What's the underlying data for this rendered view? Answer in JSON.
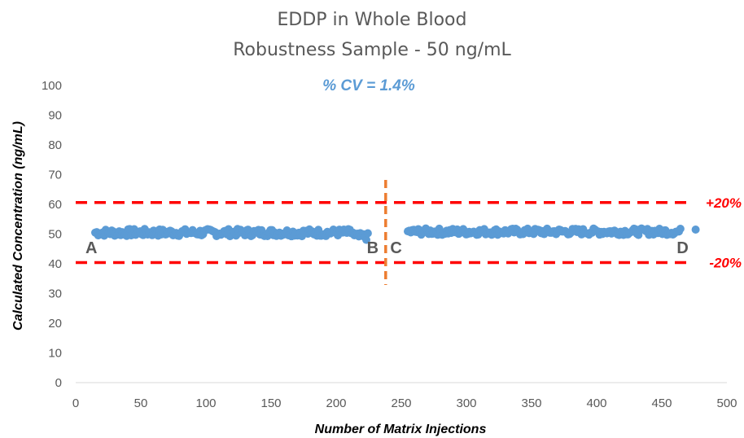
{
  "chart_data": {
    "type": "scatter",
    "title": [
      "EDDP in Whole Blood",
      "Robustness Sample - 50 ng/mL"
    ],
    "xlabel": "Number of Matrix Injections",
    "ylabel": "Calculated Concentration (ng/mL)",
    "xlim": [
      0,
      500
    ],
    "ylim": [
      0,
      100
    ],
    "x_ticks": [
      0,
      50,
      100,
      150,
      200,
      250,
      300,
      350,
      400,
      450,
      500
    ],
    "y_ticks": [
      0,
      10,
      20,
      30,
      40,
      50,
      60,
      70,
      80,
      90,
      100
    ],
    "grid": false,
    "marker_color": "#5B9BD5",
    "series": [
      {
        "segment": "A-B",
        "x_range": [
          15,
          225
        ],
        "values_approx": 50.5,
        "range": [
          48,
          52.5
        ]
      },
      {
        "segment": "C-D",
        "x_range": [
          255,
          465
        ],
        "values_approx": 50.8,
        "range": [
          48.5,
          52.5
        ]
      },
      {
        "segment": "extra",
        "x": [
          476
        ],
        "values": [
          51.5
        ]
      }
    ],
    "annotations": {
      "cv": "% CV = 1.4%",
      "upper_limit": {
        "value": 60.6,
        "label": "+20%",
        "color": "#FF0000"
      },
      "lower_limit": {
        "value": 40.4,
        "label": "-20%",
        "color": "#FF0000"
      },
      "divider": {
        "x": 238,
        "color": "#ED7D31"
      },
      "points": [
        {
          "label": "A",
          "x": 12,
          "y": 45.5
        },
        {
          "label": "B",
          "x": 228,
          "y": 45.5
        },
        {
          "label": "C",
          "x": 246,
          "y": 45.5
        },
        {
          "label": "D",
          "x": 466,
          "y": 45.5
        }
      ]
    }
  }
}
